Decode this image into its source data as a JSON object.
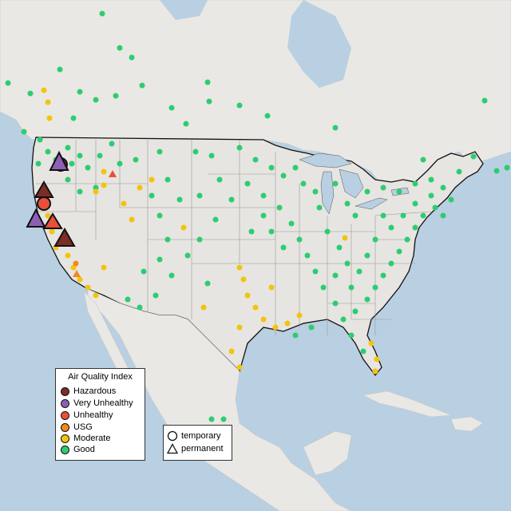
{
  "legend": {
    "title": "Air Quality Index",
    "items": [
      {
        "label": "Hazardous",
        "color": "#7b2d26"
      },
      {
        "label": "Very Unhealthy",
        "color": "#8e5fb5"
      },
      {
        "label": "Unhealthy",
        "color": "#e8503a"
      },
      {
        "label": "USG",
        "color": "#ef8a1e"
      },
      {
        "label": "Moderate",
        "color": "#f2c40f"
      },
      {
        "label": "Good",
        "color": "#2ecc71"
      }
    ]
  },
  "monitor_types": [
    {
      "label": "temporary",
      "icon": "circle-icon"
    },
    {
      "label": "permanent",
      "icon": "triangle-icon"
    }
  ]
}
